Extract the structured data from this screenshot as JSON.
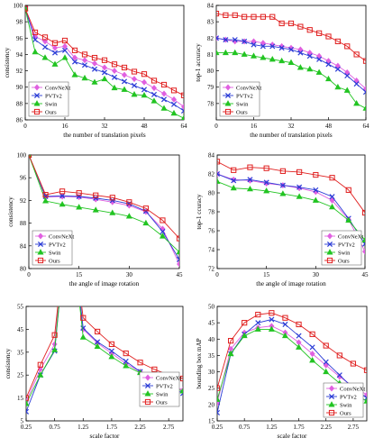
{
  "colors": {
    "convnext": "#e060e0",
    "pvtv2": "#2a3bd6",
    "swin": "#22c422",
    "ours": "#e02020",
    "axis": "#000000"
  },
  "chart_data": [
    {
      "type": "line",
      "xlabel": "the number of translation pixels",
      "ylabel": "consistency",
      "xlim": [
        0,
        64
      ],
      "ylim": [
        86,
        100
      ],
      "xticks": [
        0,
        16,
        32,
        48,
        64
      ],
      "yticks": [
        86,
        88,
        90,
        92,
        94,
        96,
        98,
        100
      ],
      "legend": "bottom-left",
      "x": [
        0,
        4,
        8,
        12,
        16,
        20,
        24,
        28,
        32,
        36,
        40,
        44,
        48,
        52,
        56,
        60,
        64
      ],
      "series": [
        {
          "name": "ConvNeXt",
          "values": [
            99.6,
            96.2,
            95.6,
            94.8,
            95.0,
            93.6,
            93.3,
            92.9,
            92.4,
            92.0,
            91.5,
            91.0,
            90.6,
            89.9,
            89.2,
            88.5,
            87.6
          ]
        },
        {
          "name": "PVTv2",
          "values": [
            99.6,
            95.8,
            94.9,
            94.2,
            94.5,
            93.1,
            92.7,
            92.2,
            91.8,
            91.2,
            90.7,
            90.2,
            89.7,
            89.1,
            88.5,
            87.9,
            87.1
          ]
        },
        {
          "name": "Swin",
          "values": [
            99.6,
            94.3,
            93.6,
            92.8,
            93.6,
            91.5,
            91.1,
            90.6,
            91.0,
            89.9,
            89.7,
            89.1,
            89.0,
            88.3,
            87.4,
            86.8,
            86.2
          ]
        },
        {
          "name": "Ours",
          "values": [
            99.6,
            96.7,
            96.1,
            95.4,
            95.7,
            94.5,
            94.0,
            93.6,
            93.3,
            92.8,
            92.4,
            91.9,
            91.6,
            90.8,
            90.3,
            89.6,
            89.0
          ]
        }
      ]
    },
    {
      "type": "line",
      "xlabel": "the number of translation pixels",
      "ylabel": "top-1 accuracy",
      "xlim": [
        0,
        64
      ],
      "ylim": [
        77,
        84
      ],
      "xticks": [
        0,
        16,
        32,
        48,
        64
      ],
      "yticks": [
        78,
        79,
        80,
        81,
        82,
        83,
        84
      ],
      "legend": "bottom-left",
      "x": [
        0,
        4,
        8,
        12,
        16,
        20,
        24,
        28,
        32,
        36,
        40,
        44,
        48,
        52,
        56,
        60,
        64
      ],
      "series": [
        {
          "name": "ConvNeXt",
          "values": [
            82.0,
            81.9,
            81.8,
            81.8,
            81.8,
            81.7,
            81.6,
            81.5,
            81.4,
            81.3,
            81.1,
            80.9,
            80.6,
            80.3,
            79.9,
            79.4,
            78.9
          ]
        },
        {
          "name": "PVTv2",
          "values": [
            82.0,
            81.9,
            81.9,
            81.8,
            81.6,
            81.5,
            81.5,
            81.4,
            81.3,
            81.1,
            80.9,
            80.7,
            80.4,
            80.1,
            79.7,
            79.2,
            78.7
          ]
        },
        {
          "name": "Swin",
          "values": [
            81.1,
            81.1,
            81.1,
            81.0,
            80.9,
            80.8,
            80.7,
            80.6,
            80.5,
            80.2,
            80.1,
            79.9,
            79.5,
            79.0,
            78.8,
            78.0,
            77.7
          ]
        },
        {
          "name": "Ours",
          "values": [
            83.5,
            83.4,
            83.4,
            83.3,
            83.3,
            83.3,
            83.3,
            82.9,
            82.9,
            82.7,
            82.5,
            82.3,
            82.1,
            81.8,
            81.5,
            81.0,
            80.6
          ]
        }
      ]
    },
    {
      "type": "line",
      "xlabel": "the angle of image rotation",
      "ylabel": "consistency",
      "xlim": [
        0,
        45
      ],
      "ylim": [
        80,
        100
      ],
      "xticks": [
        0,
        15,
        30,
        45
      ],
      "yticks": [
        80,
        84,
        88,
        92,
        96,
        100
      ],
      "legend": "bottom-left",
      "x": [
        0,
        5,
        10,
        15,
        20,
        25,
        30,
        35,
        40,
        45
      ],
      "series": [
        {
          "name": "ConvNeXt",
          "values": [
            100,
            92.6,
            92.7,
            92.6,
            92.2,
            91.7,
            91.1,
            90.0,
            87.0,
            80.8
          ]
        },
        {
          "name": "PVTv2",
          "values": [
            100,
            92.7,
            92.8,
            92.7,
            92.4,
            92.0,
            91.4,
            90.1,
            86.5,
            81.6
          ]
        },
        {
          "name": "Swin",
          "values": [
            100,
            91.9,
            91.3,
            90.8,
            90.3,
            89.8,
            89.2,
            88.0,
            85.7,
            82.9
          ]
        },
        {
          "name": "Ours",
          "values": [
            100,
            93.0,
            93.6,
            93.3,
            92.9,
            92.5,
            91.7,
            90.6,
            88.5,
            85.3
          ]
        }
      ]
    },
    {
      "type": "line",
      "xlabel": "the angle of image rotation",
      "ylabel": "top-1 ccuracy",
      "xlim": [
        0,
        45
      ],
      "ylim": [
        72,
        84
      ],
      "xticks": [
        0,
        15,
        30,
        45
      ],
      "yticks": [
        72,
        74,
        76,
        78,
        80,
        82,
        84
      ],
      "legend": "bottom-right",
      "x": [
        0,
        5,
        10,
        15,
        20,
        25,
        30,
        35,
        40,
        45
      ],
      "series": [
        {
          "name": "ConvNeXt",
          "values": [
            82.0,
            81.4,
            81.3,
            81.0,
            80.8,
            80.5,
            80.1,
            79.2,
            77.2,
            73.8
          ]
        },
        {
          "name": "PVTv2",
          "values": [
            82.0,
            81.3,
            81.4,
            81.1,
            80.8,
            80.6,
            80.3,
            79.6,
            77.3,
            74.6
          ]
        },
        {
          "name": "Swin",
          "values": [
            81.2,
            80.5,
            80.4,
            80.2,
            79.9,
            79.6,
            79.2,
            78.5,
            77.1,
            75.0
          ]
        },
        {
          "name": "Ours",
          "values": [
            83.3,
            82.4,
            82.7,
            82.6,
            82.3,
            82.2,
            81.9,
            81.6,
            80.3,
            77.9
          ]
        }
      ]
    },
    {
      "type": "line",
      "xlabel": "scale factor",
      "ylabel": "consistency",
      "xlim": [
        0.25,
        3.0
      ],
      "ylim": [
        5,
        55
      ],
      "xticks": [
        0.25,
        0.75,
        1.25,
        1.75,
        2.25,
        2.75
      ],
      "xtick_labels": [
        "0.25",
        "0.75",
        "1.25",
        "1.75",
        "2.25",
        "2.75"
      ],
      "yticks": [
        5,
        15,
        25,
        35,
        45,
        55
      ],
      "legend": "right",
      "x": [
        0.25,
        0.5,
        0.75,
        1.0,
        1.25,
        1.5,
        1.75,
        2.0,
        2.25,
        2.5,
        2.75,
        3.0
      ],
      "series": [
        {
          "name": "ConvNeXt",
          "values": [
            13.5,
            27.5,
            38.5,
            100,
            45.0,
            39.0,
            34.5,
            30.0,
            26.5,
            23.5,
            21.0,
            18.5
          ]
        },
        {
          "name": "PVTv2",
          "values": [
            9.0,
            25.0,
            35.5,
            100,
            45.5,
            39.5,
            35.5,
            31.0,
            26.5,
            23.0,
            20.0,
            17.0
          ]
        },
        {
          "name": "Swin",
          "values": [
            12.5,
            25.0,
            36.0,
            100,
            41.5,
            37.5,
            33.0,
            29.0,
            26.0,
            23.0,
            20.0,
            18.0
          ]
        },
        {
          "name": "Ours",
          "values": [
            15.0,
            29.5,
            42.5,
            100,
            50.0,
            44.0,
            38.5,
            34.5,
            30.5,
            27.5,
            25.0,
            23.5
          ]
        }
      ]
    },
    {
      "type": "line",
      "xlabel": "scale factor",
      "ylabel": "bounding box mAP",
      "xlim": [
        0.25,
        3.0
      ],
      "ylim": [
        15,
        50
      ],
      "xticks": [
        0.25,
        0.75,
        1.25,
        1.75,
        2.25,
        2.75
      ],
      "xtick_labels": [
        "0.25",
        "0.75",
        "1.25",
        "1.75",
        "2.25",
        "2.75"
      ],
      "yticks": [
        15,
        20,
        25,
        30,
        35,
        40,
        45,
        50
      ],
      "legend": "bottom-right",
      "x": [
        0.25,
        0.5,
        0.75,
        1.0,
        1.25,
        1.5,
        1.75,
        2.0,
        2.25,
        2.5,
        2.75,
        3.0
      ],
      "series": [
        {
          "name": "ConvNeXt",
          "values": [
            20.5,
            37.0,
            42.0,
            43.5,
            44.0,
            42.0,
            39.0,
            35.5,
            32.0,
            28.5,
            25.5,
            23.0
          ]
        },
        {
          "name": "PVTv2",
          "values": [
            17.5,
            35.5,
            41.5,
            45.0,
            46.0,
            44.5,
            41.0,
            37.5,
            33.0,
            29.0,
            25.0,
            22.0
          ]
        },
        {
          "name": "Swin",
          "values": [
            21.5,
            35.5,
            41.0,
            43.0,
            43.0,
            41.0,
            37.5,
            33.5,
            30.0,
            26.5,
            23.5,
            21.0
          ]
        },
        {
          "name": "Ours",
          "values": [
            25.0,
            39.5,
            45.0,
            47.5,
            48.0,
            46.5,
            44.5,
            41.5,
            38.0,
            35.0,
            32.5,
            30.5
          ]
        }
      ]
    }
  ]
}
